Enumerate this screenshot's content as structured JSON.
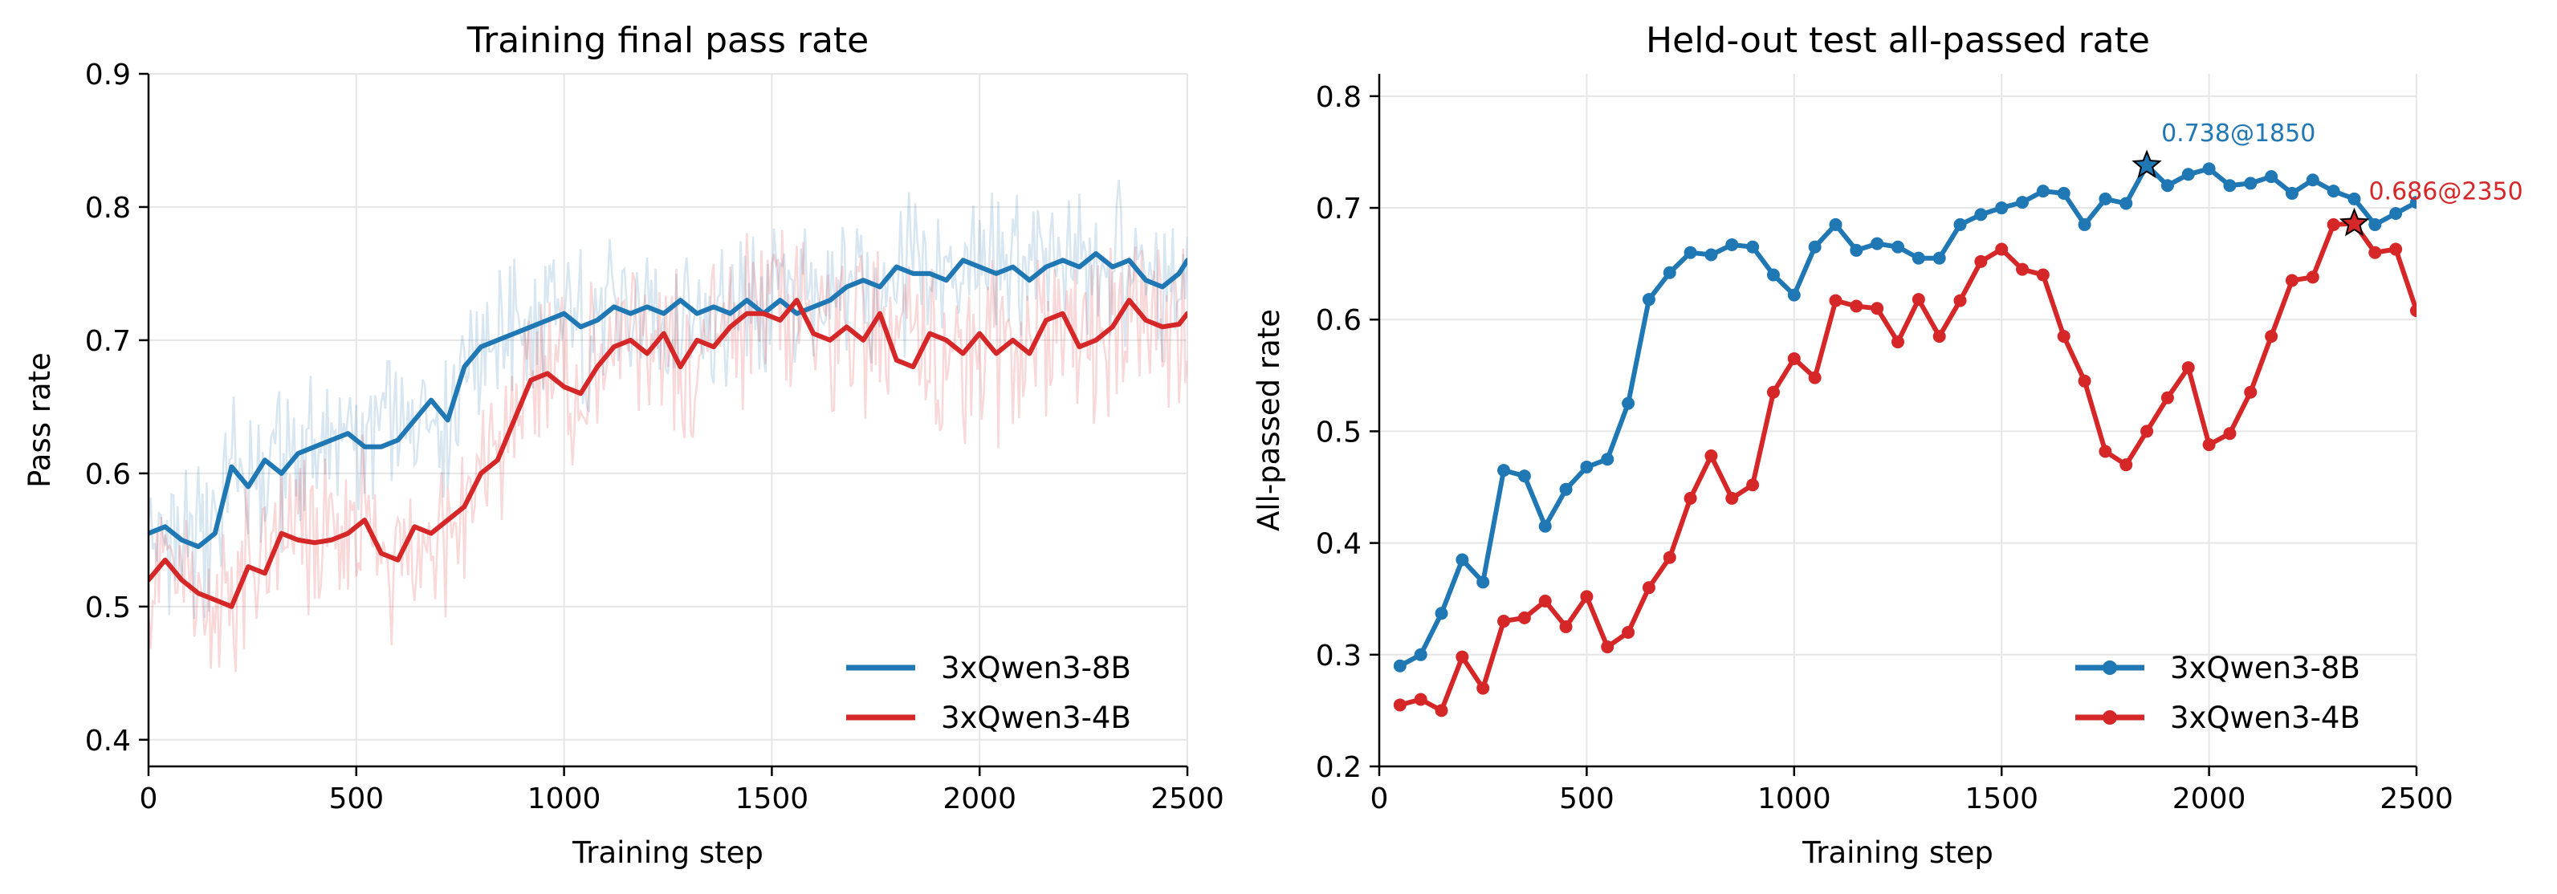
{
  "chart_data": [
    {
      "type": "line",
      "title": "Training final pass rate",
      "xlabel": "Training step",
      "ylabel": "Pass rate",
      "xlim": [
        0,
        2500
      ],
      "ylim": [
        0.38,
        0.9
      ],
      "xticks": [
        "0",
        "500",
        "1000",
        "1500",
        "2000",
        "2500"
      ],
      "yticks": [
        "0.4",
        "0.5",
        "0.6",
        "0.7",
        "0.8",
        "0.9"
      ],
      "grid": true,
      "legend": "lower-right",
      "series": [
        {
          "name": "3xQwen3-8B",
          "color": "#1f77b4",
          "raw_band": {
            "opacity": 0.18,
            "noise_amplitude": 0.07
          },
          "x": [
            0,
            40,
            80,
            120,
            160,
            200,
            240,
            280,
            320,
            360,
            400,
            440,
            480,
            520,
            560,
            600,
            640,
            680,
            720,
            760,
            800,
            840,
            880,
            920,
            960,
            1000,
            1040,
            1080,
            1120,
            1160,
            1200,
            1240,
            1280,
            1320,
            1360,
            1400,
            1440,
            1480,
            1520,
            1560,
            1600,
            1640,
            1680,
            1720,
            1760,
            1800,
            1840,
            1880,
            1920,
            1960,
            2000,
            2040,
            2080,
            2120,
            2160,
            2200,
            2240,
            2280,
            2320,
            2360,
            2400,
            2440,
            2480,
            2500
          ],
          "values": [
            0.555,
            0.56,
            0.55,
            0.545,
            0.555,
            0.605,
            0.59,
            0.61,
            0.6,
            0.615,
            0.62,
            0.625,
            0.63,
            0.62,
            0.62,
            0.625,
            0.64,
            0.655,
            0.64,
            0.68,
            0.695,
            0.7,
            0.705,
            0.71,
            0.715,
            0.72,
            0.71,
            0.715,
            0.725,
            0.72,
            0.725,
            0.72,
            0.73,
            0.72,
            0.725,
            0.72,
            0.73,
            0.72,
            0.73,
            0.72,
            0.725,
            0.73,
            0.74,
            0.745,
            0.74,
            0.755,
            0.75,
            0.75,
            0.745,
            0.76,
            0.755,
            0.75,
            0.755,
            0.745,
            0.755,
            0.76,
            0.755,
            0.765,
            0.755,
            0.76,
            0.745,
            0.74,
            0.75,
            0.76
          ]
        },
        {
          "name": "3xQwen3-4B",
          "color": "#d62728",
          "raw_band": {
            "opacity": 0.18,
            "noise_amplitude": 0.08
          },
          "x": [
            0,
            40,
            80,
            120,
            160,
            200,
            240,
            280,
            320,
            360,
            400,
            440,
            480,
            520,
            560,
            600,
            640,
            680,
            720,
            760,
            800,
            840,
            880,
            920,
            960,
            1000,
            1040,
            1080,
            1120,
            1160,
            1200,
            1240,
            1280,
            1320,
            1360,
            1400,
            1440,
            1480,
            1520,
            1560,
            1600,
            1640,
            1680,
            1720,
            1760,
            1800,
            1840,
            1880,
            1920,
            1960,
            2000,
            2040,
            2080,
            2120,
            2160,
            2200,
            2240,
            2280,
            2320,
            2360,
            2400,
            2440,
            2480,
            2500
          ],
          "values": [
            0.52,
            0.535,
            0.52,
            0.51,
            0.505,
            0.5,
            0.53,
            0.525,
            0.555,
            0.55,
            0.548,
            0.55,
            0.555,
            0.565,
            0.54,
            0.535,
            0.56,
            0.555,
            0.565,
            0.575,
            0.6,
            0.61,
            0.64,
            0.67,
            0.675,
            0.665,
            0.66,
            0.68,
            0.695,
            0.7,
            0.69,
            0.705,
            0.68,
            0.7,
            0.695,
            0.71,
            0.72,
            0.72,
            0.715,
            0.73,
            0.705,
            0.7,
            0.71,
            0.7,
            0.72,
            0.685,
            0.68,
            0.705,
            0.7,
            0.69,
            0.705,
            0.69,
            0.7,
            0.69,
            0.715,
            0.72,
            0.695,
            0.7,
            0.71,
            0.73,
            0.715,
            0.71,
            0.712,
            0.72
          ]
        }
      ]
    },
    {
      "type": "line",
      "title": "Held-out test all-passed rate",
      "xlabel": "Training step",
      "ylabel": "All-passed rate",
      "xlim": [
        0,
        2500
      ],
      "ylim": [
        0.2,
        0.82
      ],
      "xticks": [
        "0",
        "500",
        "1000",
        "1500",
        "2000",
        "2500"
      ],
      "yticks": [
        "0.2",
        "0.3",
        "0.4",
        "0.5",
        "0.6",
        "0.7",
        "0.8"
      ],
      "grid": true,
      "legend": "lower-right",
      "markers": true,
      "series": [
        {
          "name": "3xQwen3-8B",
          "color": "#1f77b4",
          "x": [
            50,
            100,
            150,
            200,
            250,
            300,
            350,
            400,
            450,
            500,
            550,
            600,
            650,
            700,
            750,
            800,
            850,
            900,
            950,
            1000,
            1050,
            1100,
            1150,
            1200,
            1250,
            1300,
            1350,
            1400,
            1450,
            1500,
            1550,
            1600,
            1650,
            1700,
            1750,
            1800,
            1850,
            1900,
            1950,
            2000,
            2050,
            2100,
            2150,
            2200,
            2250,
            2300,
            2350,
            2400,
            2450,
            2500
          ],
          "values": [
            0.29,
            0.3,
            0.337,
            0.385,
            0.365,
            0.465,
            0.46,
            0.415,
            0.448,
            0.468,
            0.475,
            0.525,
            0.618,
            0.642,
            0.66,
            0.658,
            0.667,
            0.665,
            0.64,
            0.622,
            0.665,
            0.685,
            0.662,
            0.668,
            0.665,
            0.655,
            0.655,
            0.685,
            0.694,
            0.7,
            0.705,
            0.715,
            0.713,
            0.685,
            0.708,
            0.704,
            0.738,
            0.72,
            0.73,
            0.735,
            0.72,
            0.722,
            0.728,
            0.713,
            0.725,
            0.715,
            0.708,
            0.685,
            0.695,
            0.705
          ],
          "best": {
            "x": 1850,
            "y": 0.738,
            "label": "0.738@1850"
          }
        },
        {
          "name": "3xQwen3-4B",
          "color": "#d62728",
          "x": [
            50,
            100,
            150,
            200,
            250,
            300,
            350,
            400,
            450,
            500,
            550,
            600,
            650,
            700,
            750,
            800,
            850,
            900,
            950,
            1000,
            1050,
            1100,
            1150,
            1200,
            1250,
            1300,
            1350,
            1400,
            1450,
            1500,
            1550,
            1600,
            1650,
            1700,
            1750,
            1800,
            1850,
            1900,
            1950,
            2000,
            2050,
            2100,
            2150,
            2200,
            2250,
            2300,
            2350,
            2400,
            2450,
            2500
          ],
          "values": [
            0.255,
            0.26,
            0.25,
            0.298,
            0.27,
            0.33,
            0.333,
            0.348,
            0.325,
            0.352,
            0.307,
            0.32,
            0.36,
            0.387,
            0.44,
            0.478,
            0.44,
            0.452,
            0.535,
            0.565,
            0.548,
            0.617,
            0.612,
            0.61,
            0.58,
            0.618,
            0.585,
            0.617,
            0.652,
            0.663,
            0.645,
            0.64,
            0.585,
            0.545,
            0.482,
            0.47,
            0.5,
            0.53,
            0.557,
            0.488,
            0.498,
            0.535,
            0.585,
            0.635,
            0.638,
            0.685,
            0.686,
            0.66,
            0.663,
            0.608
          ],
          "best": {
            "x": 2350,
            "y": 0.686,
            "label": "0.686@2350"
          }
        }
      ]
    }
  ]
}
